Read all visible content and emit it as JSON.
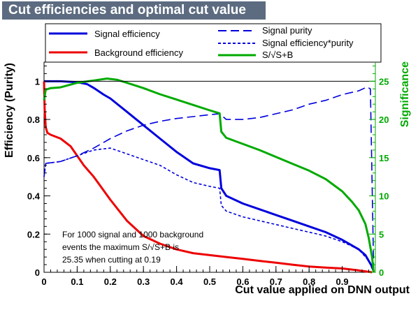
{
  "title": "Cut efficiencies and optimal cut value",
  "chart_data": {
    "type": "line",
    "xlabel": "Cut value applied on DNN output",
    "ylabel_left": "Efficiency (Purity)",
    "ylabel_right": "Significance",
    "xlim": [
      0,
      1
    ],
    "ylim_left": [
      0,
      1.1
    ],
    "ylim_right": [
      0,
      27.5
    ],
    "x_ticks": [
      "0",
      "0.1",
      "0.2",
      "0.3",
      "0.4",
      "0.5",
      "0.6",
      "0.7",
      "0.8",
      "0.9"
    ],
    "y_ticks_left": [
      "0",
      "0.2",
      "0.4",
      "0.6",
      "0.8",
      "1"
    ],
    "y_ticks_right": [
      "0",
      "5",
      "10",
      "15",
      "20",
      "25"
    ],
    "legend": {
      "left_col": [
        "Signal efficiency",
        "Background efficiency"
      ],
      "right_col": [
        "Signal purity",
        "Signal efficiency*purity",
        "S/√S+B"
      ]
    },
    "annotation": [
      "For 1000 signal and 1000 background",
      "events the maximum S/√S+B is",
      "25.35 when cutting at  0.19"
    ],
    "series": [
      {
        "name": "Signal efficiency",
        "axis": "left",
        "color": "#0000dd",
        "style": "solid",
        "x": [
          0,
          0.01,
          0.05,
          0.1,
          0.13,
          0.15,
          0.18,
          0.2,
          0.25,
          0.3,
          0.35,
          0.4,
          0.45,
          0.5,
          0.53,
          0.535,
          0.55,
          0.6,
          0.65,
          0.7,
          0.75,
          0.8,
          0.85,
          0.9,
          0.93,
          0.95,
          0.97,
          0.98,
          0.99,
          0.995
        ],
        "y": [
          1.0,
          1.0,
          1.0,
          0.995,
          0.985,
          0.965,
          0.93,
          0.91,
          0.84,
          0.77,
          0.7,
          0.63,
          0.57,
          0.545,
          0.535,
          0.44,
          0.4,
          0.36,
          0.33,
          0.3,
          0.27,
          0.24,
          0.21,
          0.17,
          0.14,
          0.12,
          0.09,
          0.06,
          0.03,
          0.005
        ]
      },
      {
        "name": "Background efficiency",
        "axis": "left",
        "color": "#ee0000",
        "style": "solid",
        "x": [
          0,
          0.002,
          0.005,
          0.01,
          0.02,
          0.05,
          0.08,
          0.1,
          0.12,
          0.15,
          0.2,
          0.25,
          0.3,
          0.35,
          0.4,
          0.45,
          0.5,
          0.55,
          0.6,
          0.65,
          0.7,
          0.75,
          0.8,
          0.85,
          0.9,
          0.95,
          0.99
        ],
        "y": [
          1.0,
          0.85,
          0.76,
          0.73,
          0.72,
          0.7,
          0.66,
          0.61,
          0.56,
          0.5,
          0.38,
          0.27,
          0.19,
          0.15,
          0.12,
          0.1,
          0.09,
          0.08,
          0.07,
          0.06,
          0.05,
          0.04,
          0.03,
          0.025,
          0.02,
          0.01,
          0.0
        ]
      },
      {
        "name": "Signal purity",
        "axis": "left",
        "color": "#0000dd",
        "style": "longdash",
        "x": [
          0,
          0.005,
          0.05,
          0.1,
          0.15,
          0.2,
          0.25,
          0.3,
          0.35,
          0.4,
          0.45,
          0.5,
          0.53,
          0.55,
          0.6,
          0.65,
          0.7,
          0.75,
          0.8,
          0.85,
          0.9,
          0.95,
          0.975,
          0.985,
          0.995
        ],
        "y": [
          0.5,
          0.57,
          0.58,
          0.61,
          0.65,
          0.7,
          0.74,
          0.77,
          0.79,
          0.805,
          0.815,
          0.825,
          0.83,
          0.8,
          0.8,
          0.81,
          0.83,
          0.85,
          0.88,
          0.9,
          0.93,
          0.95,
          0.97,
          0.96,
          0.0
        ]
      },
      {
        "name": "Signal efficiency*purity",
        "axis": "left",
        "color": "#0000dd",
        "style": "shortdash",
        "x": [
          0,
          0.005,
          0.05,
          0.1,
          0.15,
          0.2,
          0.25,
          0.3,
          0.35,
          0.4,
          0.45,
          0.5,
          0.53,
          0.535,
          0.55,
          0.6,
          0.65,
          0.7,
          0.75,
          0.8,
          0.85,
          0.9,
          0.95,
          0.98,
          0.995
        ],
        "y": [
          0.5,
          0.57,
          0.58,
          0.61,
          0.64,
          0.65,
          0.62,
          0.59,
          0.56,
          0.51,
          0.47,
          0.45,
          0.44,
          0.35,
          0.32,
          0.29,
          0.27,
          0.25,
          0.23,
          0.21,
          0.19,
          0.16,
          0.12,
          0.06,
          0.0
        ]
      },
      {
        "name": "S/√S+B",
        "axis": "right",
        "color": "#00aa00",
        "style": "solid",
        "x": [
          0,
          0.005,
          0.02,
          0.05,
          0.1,
          0.15,
          0.19,
          0.22,
          0.25,
          0.3,
          0.35,
          0.4,
          0.45,
          0.5,
          0.53,
          0.535,
          0.55,
          0.6,
          0.65,
          0.7,
          0.75,
          0.8,
          0.85,
          0.9,
          0.93,
          0.95,
          0.97,
          0.98,
          0.99,
          0.995
        ],
        "y": [
          22.5,
          23.9,
          24.1,
          24.2,
          24.8,
          25.1,
          25.35,
          25.2,
          24.8,
          24.1,
          23.3,
          22.6,
          21.9,
          21.2,
          20.8,
          18.4,
          17.6,
          16.8,
          16.0,
          15.1,
          14.2,
          13.3,
          12.2,
          10.6,
          9.2,
          8.1,
          6.3,
          4.5,
          2.0,
          0.0
        ]
      }
    ]
  }
}
